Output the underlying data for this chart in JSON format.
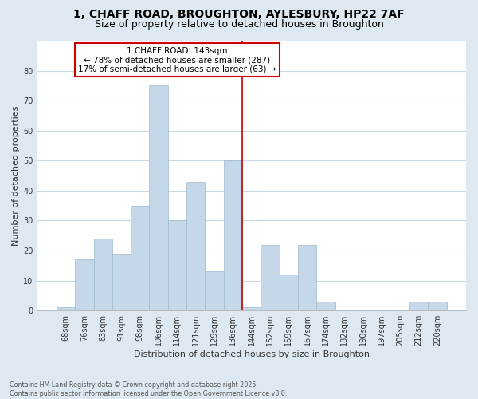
{
  "title_line1": "1, CHAFF ROAD, BROUGHTON, AYLESBURY, HP22 7AF",
  "title_line2": "Size of property relative to detached houses in Broughton",
  "xlabel": "Distribution of detached houses by size in Broughton",
  "ylabel": "Number of detached properties",
  "footer_line1": "Contains HM Land Registry data © Crown copyright and database right 2025.",
  "footer_line2": "Contains public sector information licensed under the Open Government Licence v3.0.",
  "categories": [
    "68sqm",
    "76sqm",
    "83sqm",
    "91sqm",
    "98sqm",
    "106sqm",
    "114sqm",
    "121sqm",
    "129sqm",
    "136sqm",
    "144sqm",
    "152sqm",
    "159sqm",
    "167sqm",
    "174sqm",
    "182sqm",
    "190sqm",
    "197sqm",
    "205sqm",
    "212sqm",
    "220sqm"
  ],
  "values": [
    1,
    17,
    24,
    19,
    35,
    75,
    30,
    43,
    13,
    50,
    1,
    22,
    12,
    22,
    3,
    0,
    0,
    0,
    0,
    3,
    3
  ],
  "bar_color": "#c5d8ea",
  "bar_edge_color": "#9bbad0",
  "reference_line_x": 9.5,
  "annotation_line1": "1 CHAFF ROAD: 143sqm",
  "annotation_line2": "← 78% of detached houses are smaller (287)",
  "annotation_line3": "17% of semi-detached houses are larger (63) →",
  "ref_line_color": "#cc0000",
  "box_edge_color": "#cc0000",
  "ylim_max": 90,
  "yticks": [
    0,
    10,
    20,
    30,
    40,
    50,
    60,
    70,
    80
  ],
  "bg_color": "#dde8f0",
  "plot_bg_color": "#ffffff",
  "grid_color": "#c8d8e4",
  "title_fontsize": 10,
  "subtitle_fontsize": 9,
  "axis_label_fontsize": 8,
  "tick_fontsize": 7,
  "annot_fontsize": 7.5
}
